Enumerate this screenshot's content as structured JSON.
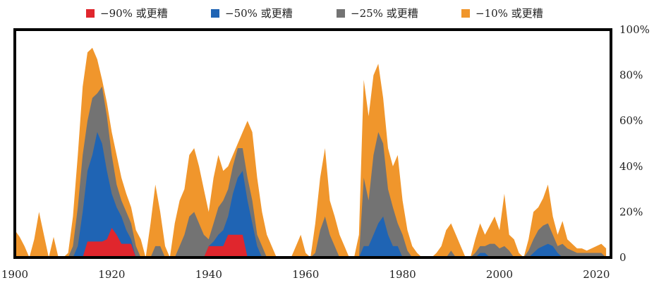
{
  "chart_data": {
    "type": "area",
    "title": "",
    "xlabel": "",
    "ylabel": "",
    "xlim": [
      1900,
      2023
    ],
    "ylim": [
      0,
      1
    ],
    "x_ticks": [
      1900,
      1920,
      1940,
      1960,
      1980,
      2000,
      2020
    ],
    "y_ticks": [
      0,
      0.2,
      0.4,
      0.6,
      0.8,
      1.0
    ],
    "y_tick_labels": [
      "0",
      "20%",
      "40%",
      "60%",
      "80%",
      "100%"
    ],
    "x_tick_labels": [
      "1900",
      "1920",
      "1940",
      "1960",
      "1980",
      "2000",
      "2020"
    ],
    "legend_position": "top",
    "grid": false,
    "x": [
      1900,
      1901,
      1902,
      1903,
      1904,
      1905,
      1906,
      1907,
      1908,
      1909,
      1910,
      1911,
      1912,
      1913,
      1914,
      1915,
      1916,
      1917,
      1918,
      1919,
      1920,
      1921,
      1922,
      1923,
      1924,
      1925,
      1926,
      1927,
      1928,
      1929,
      1930,
      1931,
      1932,
      1933,
      1934,
      1935,
      1936,
      1937,
      1938,
      1939,
      1940,
      1941,
      1942,
      1943,
      1944,
      1945,
      1946,
      1947,
      1948,
      1949,
      1950,
      1951,
      1952,
      1953,
      1954,
      1955,
      1956,
      1957,
      1958,
      1959,
      1960,
      1961,
      1962,
      1963,
      1964,
      1965,
      1966,
      1967,
      1968,
      1969,
      1970,
      1971,
      1972,
      1973,
      1974,
      1975,
      1976,
      1977,
      1978,
      1979,
      1980,
      1981,
      1982,
      1983,
      1984,
      1985,
      1986,
      1987,
      1988,
      1989,
      1990,
      1991,
      1992,
      1993,
      1994,
      1995,
      1996,
      1997,
      1998,
      1999,
      2000,
      2001,
      2002,
      2003,
      2004,
      2005,
      2006,
      2007,
      2008,
      2009,
      2010,
      2011,
      2012,
      2013,
      2014,
      2015,
      2016,
      2017,
      2018,
      2019,
      2020,
      2021,
      2022
    ],
    "series": [
      {
        "name": "−10% 或更糟",
        "color": "#f0962c",
        "values": [
          0.12,
          0.09,
          0.05,
          0.0,
          0.08,
          0.2,
          0.1,
          0.0,
          0.09,
          0.0,
          0.0,
          0.02,
          0.18,
          0.45,
          0.75,
          0.9,
          0.92,
          0.87,
          0.78,
          0.68,
          0.55,
          0.45,
          0.35,
          0.28,
          0.22,
          0.12,
          0.08,
          0.0,
          0.15,
          0.32,
          0.2,
          0.05,
          0.0,
          0.15,
          0.25,
          0.3,
          0.45,
          0.48,
          0.4,
          0.3,
          0.2,
          0.35,
          0.45,
          0.38,
          0.4,
          0.45,
          0.5,
          0.55,
          0.6,
          0.55,
          0.35,
          0.2,
          0.1,
          0.05,
          0.0,
          0.0,
          0.0,
          0.0,
          0.05,
          0.1,
          0.02,
          0.0,
          0.15,
          0.35,
          0.48,
          0.25,
          0.18,
          0.1,
          0.05,
          0.0,
          0.0,
          0.1,
          0.78,
          0.62,
          0.8,
          0.85,
          0.7,
          0.48,
          0.4,
          0.45,
          0.25,
          0.12,
          0.05,
          0.02,
          0.0,
          0.0,
          0.0,
          0.02,
          0.05,
          0.12,
          0.15,
          0.1,
          0.05,
          0.0,
          0.0,
          0.08,
          0.15,
          0.1,
          0.14,
          0.18,
          0.12,
          0.28,
          0.1,
          0.08,
          0.02,
          0.0,
          0.08,
          0.2,
          0.22,
          0.26,
          0.32,
          0.18,
          0.1,
          0.16,
          0.08,
          0.06,
          0.04,
          0.04,
          0.03,
          0.04,
          0.05,
          0.06,
          0.04
        ]
      },
      {
        "name": "−25% 或更糟",
        "color": "#737373",
        "values": [
          0.0,
          0.0,
          0.0,
          0.0,
          0.0,
          0.0,
          0.0,
          0.0,
          0.0,
          0.0,
          0.0,
          0.0,
          0.05,
          0.22,
          0.45,
          0.6,
          0.7,
          0.72,
          0.75,
          0.62,
          0.45,
          0.32,
          0.25,
          0.2,
          0.15,
          0.05,
          0.0,
          0.0,
          0.0,
          0.05,
          0.05,
          0.0,
          0.0,
          0.0,
          0.05,
          0.1,
          0.18,
          0.2,
          0.15,
          0.1,
          0.08,
          0.15,
          0.22,
          0.25,
          0.3,
          0.4,
          0.48,
          0.48,
          0.35,
          0.25,
          0.1,
          0.05,
          0.0,
          0.0,
          0.0,
          0.0,
          0.0,
          0.0,
          0.0,
          0.0,
          0.0,
          0.0,
          0.02,
          0.12,
          0.18,
          0.1,
          0.05,
          0.0,
          0.0,
          0.0,
          0.0,
          0.0,
          0.35,
          0.25,
          0.45,
          0.55,
          0.5,
          0.3,
          0.22,
          0.15,
          0.1,
          0.03,
          0.0,
          0.0,
          0.0,
          0.0,
          0.0,
          0.0,
          0.0,
          0.0,
          0.03,
          0.0,
          0.0,
          0.0,
          0.0,
          0.02,
          0.05,
          0.05,
          0.06,
          0.06,
          0.04,
          0.05,
          0.03,
          0.0,
          0.0,
          0.0,
          0.03,
          0.08,
          0.12,
          0.14,
          0.15,
          0.1,
          0.05,
          0.06,
          0.04,
          0.03,
          0.02,
          0.02,
          0.02,
          0.02,
          0.02,
          0.02,
          0.0
        ]
      },
      {
        "name": "−50% 或更糟",
        "color": "#1f64b4",
        "values": [
          0.0,
          0.0,
          0.0,
          0.0,
          0.0,
          0.0,
          0.0,
          0.0,
          0.0,
          0.0,
          0.0,
          0.0,
          0.0,
          0.05,
          0.2,
          0.38,
          0.45,
          0.55,
          0.5,
          0.38,
          0.28,
          0.22,
          0.18,
          0.12,
          0.08,
          0.0,
          0.0,
          0.0,
          0.0,
          0.0,
          0.0,
          0.0,
          0.0,
          0.0,
          0.0,
          0.0,
          0.0,
          0.0,
          0.0,
          0.0,
          0.05,
          0.07,
          0.1,
          0.12,
          0.18,
          0.28,
          0.35,
          0.38,
          0.25,
          0.15,
          0.05,
          0.0,
          0.0,
          0.0,
          0.0,
          0.0,
          0.0,
          0.0,
          0.0,
          0.0,
          0.0,
          0.0,
          0.0,
          0.0,
          0.0,
          0.0,
          0.0,
          0.0,
          0.0,
          0.0,
          0.0,
          0.0,
          0.05,
          0.05,
          0.1,
          0.15,
          0.18,
          0.1,
          0.05,
          0.05,
          0.0,
          0.0,
          0.0,
          0.0,
          0.0,
          0.0,
          0.0,
          0.0,
          0.0,
          0.0,
          0.0,
          0.0,
          0.0,
          0.0,
          0.0,
          0.0,
          0.02,
          0.02,
          0.0,
          0.0,
          0.0,
          0.0,
          0.0,
          0.0,
          0.0,
          0.0,
          0.0,
          0.02,
          0.04,
          0.05,
          0.06,
          0.05,
          0.02,
          0.0,
          0.0,
          0.0,
          0.0,
          0.0,
          0.0,
          0.0,
          0.0,
          0.0,
          0.0
        ]
      },
      {
        "name": "−90% 或更糟",
        "color": "#e0262d",
        "values": [
          0.0,
          0.0,
          0.0,
          0.0,
          0.0,
          0.0,
          0.0,
          0.0,
          0.0,
          0.0,
          0.0,
          0.0,
          0.0,
          0.0,
          0.0,
          0.07,
          0.07,
          0.07,
          0.07,
          0.08,
          0.13,
          0.1,
          0.06,
          0.06,
          0.06,
          0.0,
          0.0,
          0.0,
          0.0,
          0.0,
          0.0,
          0.0,
          0.0,
          0.0,
          0.0,
          0.0,
          0.0,
          0.0,
          0.0,
          0.0,
          0.05,
          0.05,
          0.05,
          0.05,
          0.1,
          0.1,
          0.1,
          0.1,
          0.0,
          0.0,
          0.0,
          0.0,
          0.0,
          0.0,
          0.0,
          0.0,
          0.0,
          0.0,
          0.0,
          0.0,
          0.0,
          0.0,
          0.0,
          0.0,
          0.0,
          0.0,
          0.0,
          0.0,
          0.0,
          0.0,
          0.0,
          0.0,
          0.0,
          0.0,
          0.0,
          0.0,
          0.0,
          0.0,
          0.0,
          0.0,
          0.0,
          0.0,
          0.0,
          0.0,
          0.0,
          0.0,
          0.0,
          0.0,
          0.0,
          0.0,
          0.0,
          0.0,
          0.0,
          0.0,
          0.0,
          0.0,
          0.0,
          0.0,
          0.0,
          0.0,
          0.0,
          0.0,
          0.0,
          0.0,
          0.0,
          0.0,
          0.0,
          0.0,
          0.0,
          0.0,
          0.0,
          0.0,
          0.0,
          0.0,
          0.0,
          0.0,
          0.0,
          0.0,
          0.0,
          0.0,
          0.0,
          0.0,
          0.0
        ]
      }
    ]
  },
  "legend": [
    {
      "label": "−90% 或更糟",
      "color": "#e0262d"
    },
    {
      "label": "−50% 或更糟",
      "color": "#1f64b4"
    },
    {
      "label": "−25% 或更糟",
      "color": "#737373"
    },
    {
      "label": "−10% 或更糟",
      "color": "#f0962c"
    }
  ]
}
